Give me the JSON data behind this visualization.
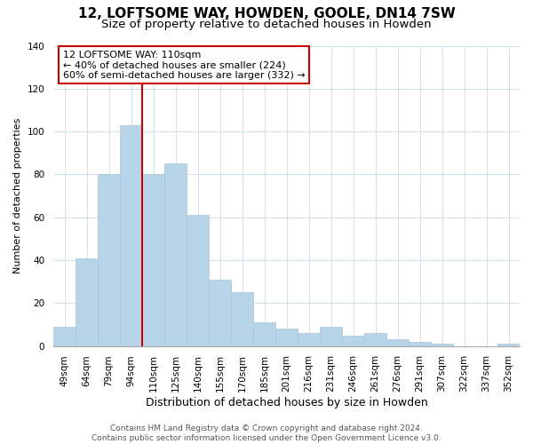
{
  "title": "12, LOFTSOME WAY, HOWDEN, GOOLE, DN14 7SW",
  "subtitle": "Size of property relative to detached houses in Howden",
  "xlabel": "Distribution of detached houses by size in Howden",
  "ylabel": "Number of detached properties",
  "categories": [
    "49sqm",
    "64sqm",
    "79sqm",
    "94sqm",
    "110sqm",
    "125sqm",
    "140sqm",
    "155sqm",
    "170sqm",
    "185sqm",
    "201sqm",
    "216sqm",
    "231sqm",
    "246sqm",
    "261sqm",
    "276sqm",
    "291sqm",
    "307sqm",
    "322sqm",
    "337sqm",
    "352sqm"
  ],
  "values": [
    9,
    41,
    80,
    103,
    80,
    85,
    61,
    31,
    25,
    11,
    8,
    6,
    9,
    5,
    6,
    3,
    2,
    1,
    0,
    0,
    1
  ],
  "bar_color": "#b8d4e8",
  "bar_edge_color": "#a8c4d8",
  "vline_color": "#cc0000",
  "vline_index": 4,
  "annotation_title": "12 LOFTSOME WAY: 110sqm",
  "annotation_line1": "← 40% of detached houses are smaller (224)",
  "annotation_line2": "60% of semi-detached houses are larger (332) →",
  "annotation_box_color": "#ffffff",
  "annotation_box_edge": "#cc0000",
  "ylim": [
    0,
    140
  ],
  "yticks": [
    0,
    20,
    40,
    60,
    80,
    100,
    120,
    140
  ],
  "footer1": "Contains HM Land Registry data © Crown copyright and database right 2024.",
  "footer2": "Contains public sector information licensed under the Open Government Licence v3.0.",
  "title_fontsize": 11,
  "subtitle_fontsize": 9.5,
  "xlabel_fontsize": 9,
  "ylabel_fontsize": 8,
  "tick_fontsize": 7.5,
  "annotation_fontsize": 8,
  "footer_fontsize": 6.5,
  "grid_color": "#d0e0ee"
}
